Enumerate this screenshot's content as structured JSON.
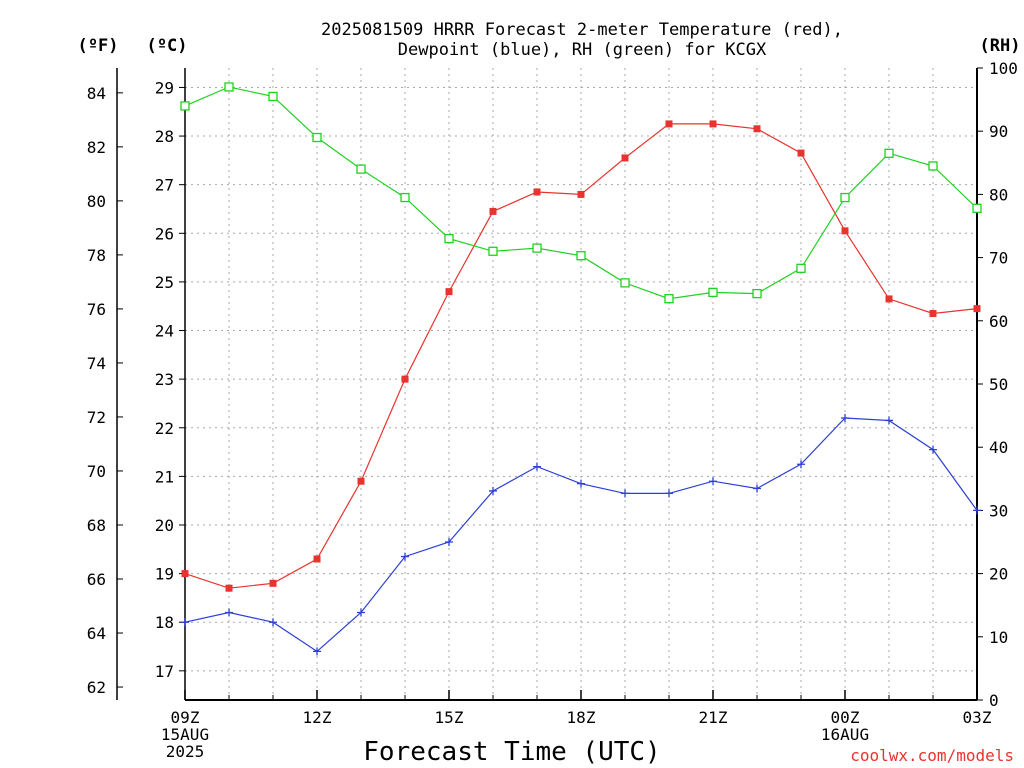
{
  "chart_data": {
    "type": "line",
    "title_lines": [
      "2025081509 HRRR Forecast 2-meter Temperature (red),",
      "Dewpoint (blue), RH (green) for KCGX"
    ],
    "xlabel": "Forecast Time (UTC)",
    "credit": "coolwx.com/models",
    "units": {
      "left_outer": "(ºF)",
      "left_inner": "(ºC)",
      "right": "(RH)"
    },
    "axes": {
      "celsius": {
        "range": [
          16.4,
          29.4
        ],
        "ticks": [
          17,
          18,
          19,
          20,
          21,
          22,
          23,
          24,
          25,
          26,
          27,
          28,
          29
        ]
      },
      "fahrenheit": {
        "ticks": [
          62,
          64,
          66,
          68,
          70,
          72,
          74,
          76,
          78,
          80,
          82,
          84
        ]
      },
      "rh": {
        "range": [
          0,
          100
        ],
        "ticks": [
          0,
          10,
          20,
          30,
          40,
          50,
          60,
          70,
          80,
          90,
          100
        ]
      },
      "x": {
        "range": [
          0,
          18
        ]
      }
    },
    "x_ticks": [
      {
        "x": 0,
        "lines": [
          "09Z",
          "15AUG",
          "2025"
        ]
      },
      {
        "x": 3,
        "lines": [
          "12Z"
        ]
      },
      {
        "x": 6,
        "lines": [
          "15Z"
        ]
      },
      {
        "x": 9,
        "lines": [
          "18Z"
        ]
      },
      {
        "x": 12,
        "lines": [
          "21Z"
        ]
      },
      {
        "x": 15,
        "lines": [
          "00Z",
          "16AUG"
        ]
      },
      {
        "x": 18,
        "lines": [
          "03Z"
        ]
      }
    ],
    "grid": true,
    "x": [
      0,
      1,
      2,
      3,
      4,
      5,
      6,
      7,
      8,
      9,
      10,
      11,
      12,
      13,
      14,
      15,
      16,
      17,
      18
    ],
    "series": [
      {
        "key": "temperature",
        "axis": "celsius",
        "color": "#e8332e",
        "marker": "filled-square",
        "values": [
          19.0,
          18.7,
          18.8,
          19.3,
          20.9,
          23.0,
          24.8,
          26.45,
          26.85,
          26.8,
          27.55,
          28.25,
          28.25,
          28.15,
          27.65,
          26.05,
          24.65,
          24.35,
          24.45
        ]
      },
      {
        "key": "dewpoint",
        "axis": "celsius",
        "color": "#2c3fd6",
        "marker": "plus",
        "values": [
          18.0,
          18.2,
          18.0,
          17.4,
          18.2,
          19.35,
          19.65,
          20.7,
          21.2,
          20.85,
          20.65,
          20.65,
          20.9,
          20.75,
          21.25,
          22.2,
          22.15,
          21.55,
          20.3
        ]
      },
      {
        "key": "rh",
        "axis": "rh",
        "color": "#22d022",
        "marker": "open-square",
        "values": [
          94,
          97,
          95.5,
          89,
          84,
          79.5,
          73,
          71,
          71.5,
          70.3,
          66,
          63.5,
          64.5,
          64.3,
          68.3,
          79.5,
          86.5,
          84.5,
          77.8
        ]
      }
    ]
  }
}
